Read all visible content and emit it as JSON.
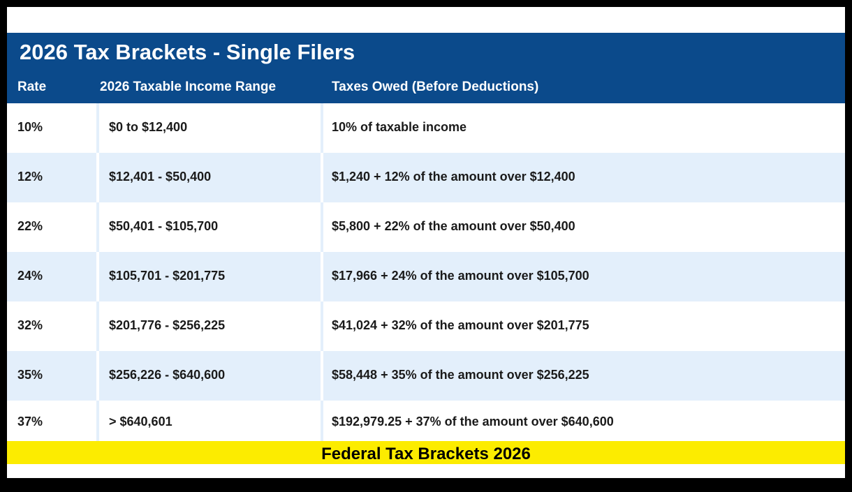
{
  "table": {
    "title": "2026 Tax Brackets - Single Filers",
    "headers": {
      "rate": "Rate",
      "range": "2026 Taxable Income Range",
      "owed": "Taxes Owed (Before Deductions)"
    },
    "rows": [
      {
        "rate": "10%",
        "range": "$0 to $12,400",
        "owed": "10% of taxable income"
      },
      {
        "rate": "12%",
        "range": "$12,401 - $50,400",
        "owed": "$1,240 + 12% of the amount over $12,400"
      },
      {
        "rate": "22%",
        "range": "$50,401 - $105,700",
        "owed": "$5,800 + 22% of the amount over $50,400"
      },
      {
        "rate": "24%",
        "range": "$105,701 - $201,775",
        "owed": "$17,966 + 24% of the amount over $105,700"
      },
      {
        "rate": "32%",
        "range": "$201,776 - $256,225",
        "owed": "$41,024 + 32% of the amount over $201,775"
      },
      {
        "rate": "35%",
        "range": "$256,226 - $640,600",
        "owed": "$58,448 + 35% of the amount over $256,225"
      },
      {
        "rate": "37%",
        "range": "> $640,601",
        "owed": "$192,979.25 + 37% of the amount over $640,600"
      }
    ]
  },
  "caption": "Federal Tax Brackets 2026",
  "colors": {
    "header_blue": "#0b4a8b",
    "stripe_light_blue": "#e3effb",
    "caption_yellow": "#fcec00",
    "frame_black": "#000000"
  }
}
